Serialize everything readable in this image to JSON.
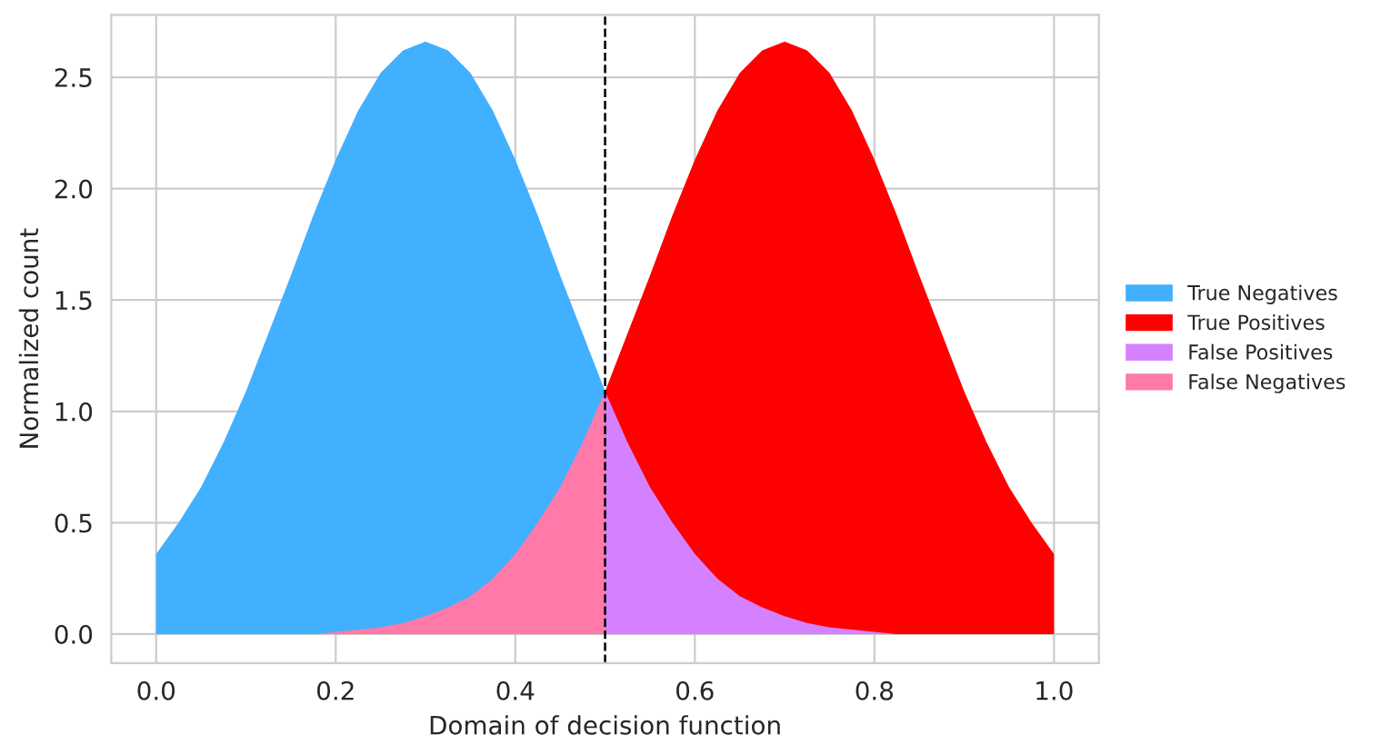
{
  "chart_data": {
    "type": "area",
    "xlabel": "Domain of decision function",
    "ylabel": "Normalized count",
    "xlim": [
      -0.05,
      1.05
    ],
    "ylim": [
      -0.13,
      2.78
    ],
    "xticks": [
      {
        "value": 0,
        "label": "0.0"
      },
      0.2,
      0.4,
      0.6,
      0.8,
      {
        "value": 1,
        "label": "1.0"
      }
    ],
    "yticks": [
      {
        "value": 0,
        "label": "0.0"
      },
      0.5,
      {
        "value": 1,
        "label": "1.0"
      },
      1.5,
      {
        "value": 2,
        "label": "2.0"
      },
      2.5
    ],
    "grid": true,
    "legend": "right",
    "ref_lines": [
      {
        "axis": "x",
        "value": 0.5,
        "color": "#000000",
        "line_style": "dashed"
      }
    ],
    "series": [
      {
        "name": "True Negatives",
        "color": "#40b0ff",
        "x": [
          0,
          0.025,
          0.05,
          0.075,
          0.1,
          0.125,
          0.15,
          0.175,
          0.2,
          0.225,
          0.25,
          0.275,
          0.3,
          0.325,
          0.35,
          0.375,
          0.4,
          0.425,
          0.45,
          0.475,
          0.5
        ],
        "values": [
          0.36,
          0.5,
          0.66,
          0.86,
          1.09,
          1.35,
          1.61,
          1.88,
          2.13,
          2.35,
          2.52,
          2.62,
          2.66,
          2.62,
          2.52,
          2.35,
          2.13,
          1.88,
          1.61,
          1.35,
          1.09
        ]
      },
      {
        "name": "True Positives",
        "color": "#ff0000",
        "x": [
          0.5,
          0.525,
          0.55,
          0.575,
          0.6,
          0.625,
          0.65,
          0.675,
          0.7,
          0.725,
          0.75,
          0.775,
          0.8,
          0.825,
          0.85,
          0.875,
          0.9,
          0.925,
          0.95,
          0.975,
          1
        ],
        "values": [
          1.09,
          1.35,
          1.61,
          1.88,
          2.13,
          2.35,
          2.52,
          2.62,
          2.66,
          2.62,
          2.52,
          2.35,
          2.13,
          1.88,
          1.61,
          1.35,
          1.09,
          0.86,
          0.66,
          0.5,
          0.36
        ]
      },
      {
        "name": "False Positives",
        "color": "#d580ff",
        "x": [
          0.5,
          0.525,
          0.55,
          0.575,
          0.6,
          0.625,
          0.65,
          0.675,
          0.7,
          0.725,
          0.75,
          0.775,
          0.8,
          0.825,
          0.85,
          0.875,
          0.9,
          0.925,
          0.95,
          0.975,
          1
        ],
        "values": [
          1.09,
          0.86,
          0.66,
          0.5,
          0.36,
          0.25,
          0.17,
          0.12,
          0.08,
          0.05,
          0.03,
          0.02,
          0.01,
          0,
          0,
          0,
          0,
          0,
          0,
          0,
          0
        ]
      },
      {
        "name": "False Negatives",
        "color": "#ff7aa8",
        "x": [
          0,
          0.025,
          0.05,
          0.075,
          0.1,
          0.125,
          0.15,
          0.175,
          0.2,
          0.225,
          0.25,
          0.275,
          0.3,
          0.325,
          0.35,
          0.375,
          0.4,
          0.425,
          0.45,
          0.475,
          0.5
        ],
        "values": [
          0,
          0,
          0,
          0,
          0,
          0,
          0,
          0,
          0.01,
          0.02,
          0.03,
          0.05,
          0.08,
          0.12,
          0.17,
          0.25,
          0.36,
          0.5,
          0.66,
          0.86,
          1.09
        ]
      }
    ]
  }
}
